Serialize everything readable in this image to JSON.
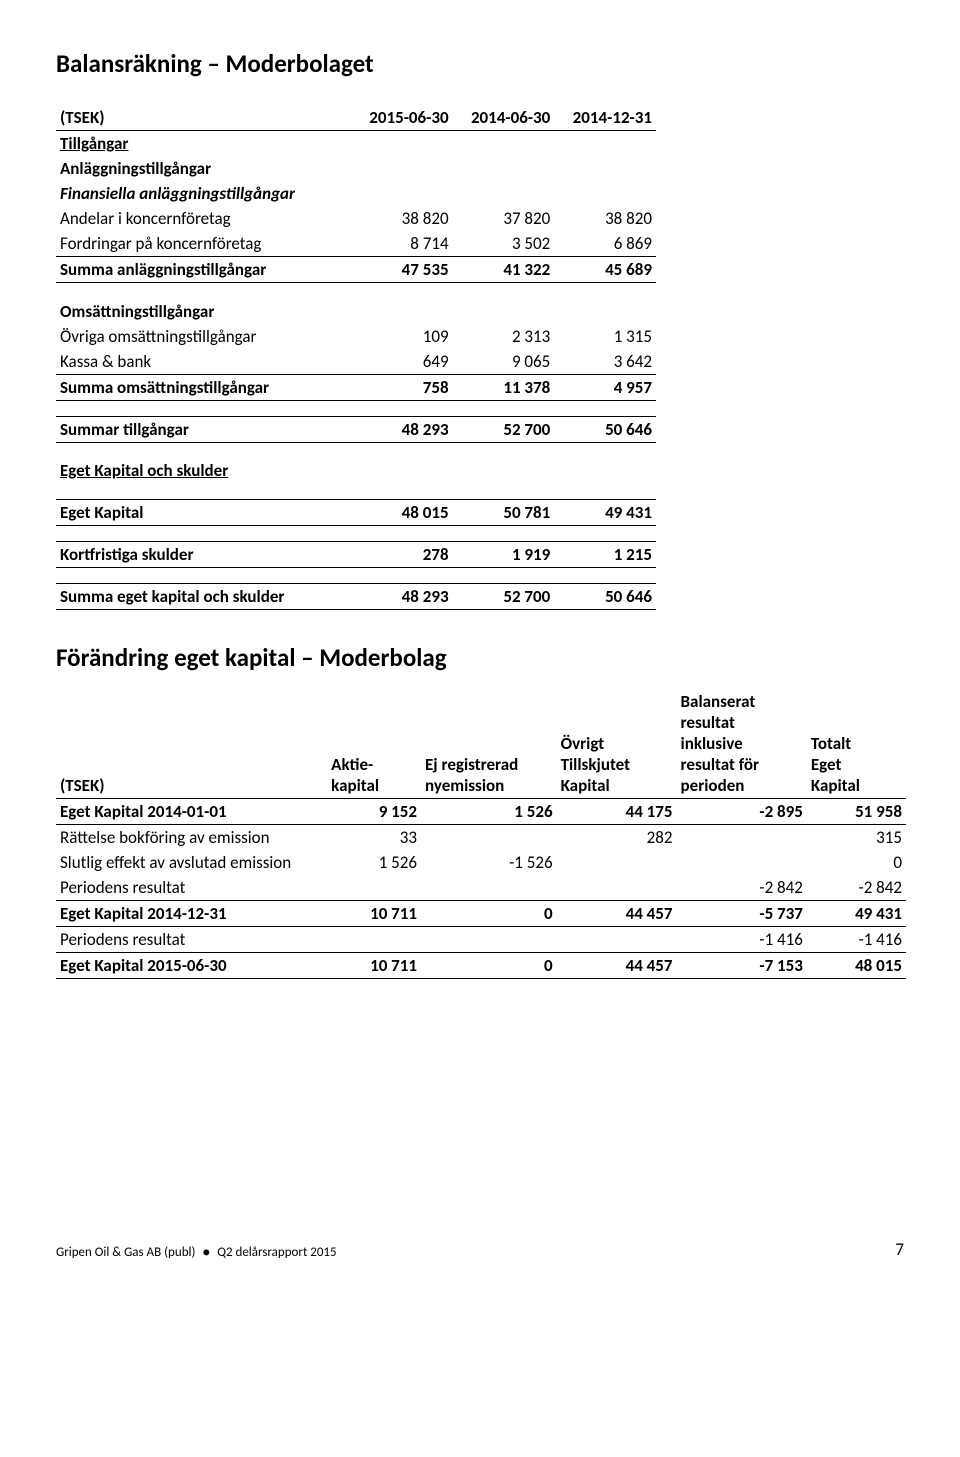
{
  "titles": {
    "t1": "Balansräkning – Moderbolaget",
    "t2": "Förändring eget kapital – Moderbolag"
  },
  "t1": {
    "header": [
      "(TSEK)",
      "2015-06-30",
      "2014-06-30",
      "2014-12-31"
    ],
    "section1_underline": "Tillgångar",
    "section1a": "Anläggningstillgångar",
    "section1b": "Finansiella anläggningstillgångar",
    "rows1": [
      {
        "label": "Andelar i koncernföretag",
        "v": [
          "38 820",
          "37 820",
          "38 820"
        ]
      },
      {
        "label": "Fordringar på koncernföretag",
        "v": [
          "8 714",
          "3 502",
          "6 869"
        ]
      }
    ],
    "subtotal1": {
      "label": "Summa anläggningstillgångar",
      "v": [
        "47 535",
        "41 322",
        "45 689"
      ]
    },
    "section2": "Omsättningstillgångar",
    "rows2": [
      {
        "label": "Övriga omsättningstillgångar",
        "v": [
          "109",
          "2 313",
          "1 315"
        ]
      },
      {
        "label": "Kassa & bank",
        "v": [
          "649",
          "9 065",
          "3 642"
        ]
      }
    ],
    "subtotal2": {
      "label": "Summa omsättningstillgångar",
      "v": [
        "758",
        "11 378",
        "4 957"
      ]
    },
    "grand1": {
      "label": "Summar tillgångar",
      "v": [
        "48 293",
        "52 700",
        "50 646"
      ]
    },
    "section3_underline": "Eget Kapital och skulder",
    "row_ek": {
      "label": "Eget Kapital",
      "v": [
        "48 015",
        "50 781",
        "49 431"
      ]
    },
    "row_ks": {
      "label": "Kortfristiga skulder",
      "v": [
        "278",
        "1 919",
        "1 215"
      ]
    },
    "grand2": {
      "label": "Summa eget kapital och skulder",
      "v": [
        "48 293",
        "52 700",
        "50 646"
      ]
    }
  },
  "t2": {
    "header_rows": {
      "c0": "(TSEK)",
      "c1": "Aktie-\nkapital",
      "c2": "Ej registrerad\nnyemission",
      "c3": "Övrigt\nTillskjutet\nKapital",
      "c4": "Balanserat\nresultat\ninklusive\nresultat för\nperioden",
      "c5": "Totalt\nEget\nKapital"
    },
    "rows": [
      {
        "label": "Eget Kapital 2014-01-01",
        "v": [
          "9 152",
          "1 526",
          "44 175",
          "-2 895",
          "51 958"
        ],
        "bold": true,
        "bt": true,
        "bb": true
      },
      {
        "label": "Rättelse bokföring av emission",
        "v": [
          "33",
          "",
          "282",
          "",
          "315"
        ],
        "bold": false
      },
      {
        "label": "Slutlig effekt av avslutad emission",
        "v": [
          "1 526",
          "-1 526",
          "",
          "",
          "0"
        ],
        "bold": false
      },
      {
        "label": "Periodens resultat",
        "v": [
          "",
          "",
          "",
          "-2 842",
          "-2 842"
        ],
        "bold": false
      },
      {
        "label": "Eget Kapital 2014-12-31",
        "v": [
          "10 711",
          "0",
          "44 457",
          "-5 737",
          "49 431"
        ],
        "bold": true,
        "bt": true,
        "bb": true
      },
      {
        "label": "Periodens resultat",
        "v": [
          "",
          "",
          "",
          "-1 416",
          "-1 416"
        ],
        "bold": false
      },
      {
        "label": "Eget Kapital 2015-06-30",
        "v": [
          "10 711",
          "0",
          "44 457",
          "-7 153",
          "48 015"
        ],
        "bold": true,
        "bt": true,
        "bb": true
      }
    ]
  },
  "footer": {
    "company": "Gripen Oil & Gas AB (publ)",
    "report": "Q2 delårsrapport 2015",
    "page": "7"
  },
  "colors": {
    "text": "#000000",
    "bg": "#ffffff",
    "rule": "#000000"
  }
}
